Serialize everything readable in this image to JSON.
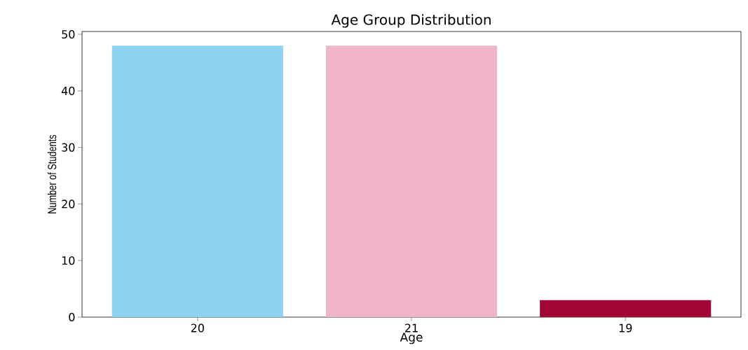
{
  "chart_data": {
    "type": "bar",
    "title": "Age Group Distribution",
    "xlabel": "Age",
    "ylabel": "Number of Students",
    "categories": [
      "20",
      "21",
      "19"
    ],
    "values": [
      48,
      48,
      3
    ],
    "colors": [
      "#8fd3f3",
      "#f0b6c8",
      "#a10534"
    ],
    "ylim": [
      0,
      50.5
    ],
    "yticks": [
      0,
      10,
      20,
      30,
      40,
      50
    ],
    "grid": false
  }
}
